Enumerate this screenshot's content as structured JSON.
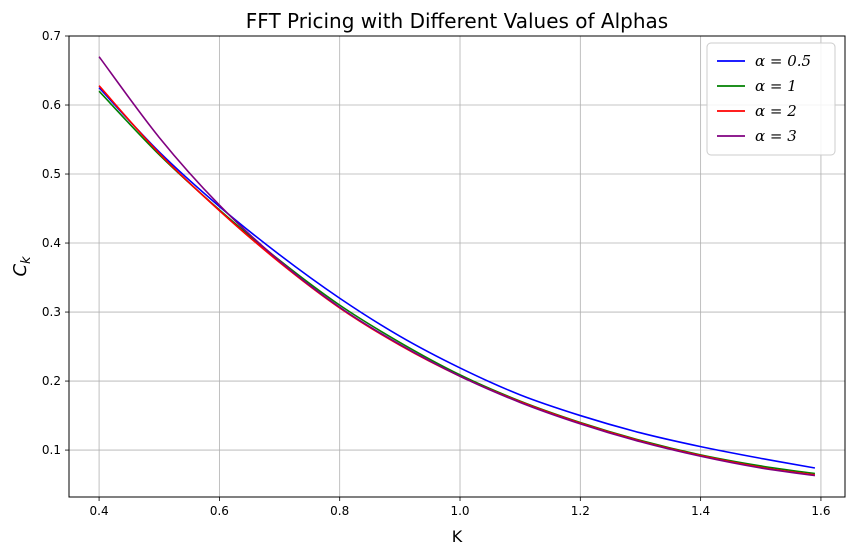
{
  "chart_data": {
    "type": "line",
    "title": "FFT Pricing with Different Values of Alphas",
    "xlabel": "K",
    "ylabel": "C_k",
    "xlim": [
      0.35,
      1.64
    ],
    "ylim": [
      0.032,
      0.7
    ],
    "xticks": [
      0.4,
      0.6,
      0.8,
      1.0,
      1.2,
      1.4,
      1.6
    ],
    "xtick_labels": [
      "0.4",
      "0.6",
      "0.8",
      "1.0",
      "1.2",
      "1.4",
      "1.6"
    ],
    "yticks": [
      0.1,
      0.2,
      0.3,
      0.4,
      0.5,
      0.6,
      0.7
    ],
    "ytick_labels": [
      "0.1",
      "0.2",
      "0.3",
      "0.4",
      "0.5",
      "0.6",
      "0.7"
    ],
    "grid": true,
    "legend_position": "top-right",
    "x": [
      0.4,
      0.5,
      0.6,
      0.7,
      0.8,
      0.9,
      1.0,
      1.1,
      1.2,
      1.3,
      1.4,
      1.5,
      1.59
    ],
    "series": [
      {
        "name": "α = 0.5",
        "color": "#0000ff",
        "values": [
          0.625,
          0.532,
          0.453,
          0.383,
          0.32,
          0.265,
          0.219,
          0.18,
          0.15,
          0.125,
          0.105,
          0.088,
          0.074
        ]
      },
      {
        "name": "α = 1",
        "color": "#008000",
        "values": [
          0.62,
          0.528,
          0.448,
          0.375,
          0.31,
          0.256,
          0.209,
          0.171,
          0.14,
          0.114,
          0.093,
          0.077,
          0.066
        ]
      },
      {
        "name": "α = 2",
        "color": "#ff0000",
        "values": [
          0.628,
          0.53,
          0.447,
          0.372,
          0.306,
          0.252,
          0.207,
          0.17,
          0.139,
          0.113,
          0.092,
          0.075,
          0.064
        ]
      },
      {
        "name": "α = 3",
        "color": "#800080",
        "values": [
          0.67,
          0.553,
          0.455,
          0.374,
          0.307,
          0.253,
          0.207,
          0.169,
          0.138,
          0.112,
          0.091,
          0.074,
          0.063
        ]
      }
    ]
  }
}
